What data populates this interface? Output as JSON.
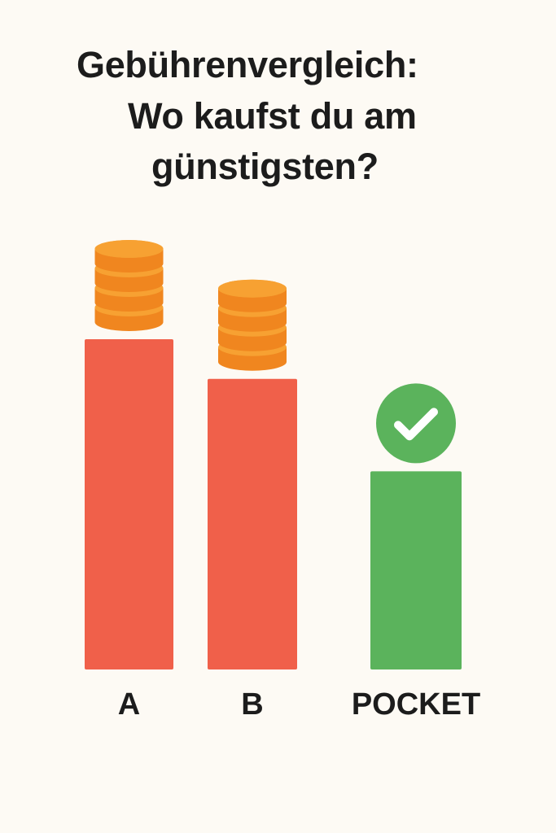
{
  "chart_data": {
    "type": "bar",
    "title_lines": [
      "Gebührenvergleich:",
      "Wo kaufst du am",
      "günstigsten?"
    ],
    "categories": [
      "A",
      "B",
      "POCKET"
    ],
    "values": [
      100,
      88,
      60
    ],
    "value_unit": "relative fee level (unlabeled)",
    "coin_stacks": [
      4,
      4,
      0
    ],
    "markers": [
      "coins",
      "coins",
      "check-circle"
    ],
    "colors": {
      "expensive": "#f0604a",
      "cheap": "#5bb35c",
      "coin": "#f7a132",
      "coin_side": "#f0861f",
      "background": "#fdfaf4",
      "text": "#1c1c1c"
    },
    "grid": false,
    "legend": "none"
  }
}
